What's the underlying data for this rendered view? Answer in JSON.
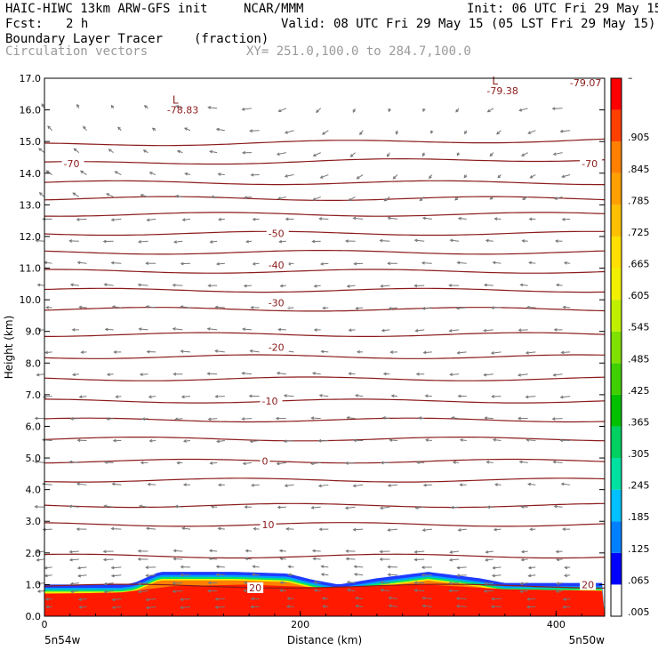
{
  "header": {
    "model": "HAIC-HIWC 13km ARW-GFS init",
    "org": "NCAR/MMM",
    "init": "Init: 06 UTC Fri 29 May 15",
    "fcst_label": "Fcst:",
    "fcst_value": "2 h",
    "valid": "Valid: 08 UTC Fri 29 May 15 (05 LST Fri 29 May 15)",
    "field": "Boundary Layer Tracer",
    "field_units": "(fraction)",
    "overlay": "Circulation vectors",
    "xy": "XY= 251.0,100.0 to 284.7,100.0"
  },
  "chart_data": {
    "type": "heatmap",
    "xlabel": "Distance (km)",
    "ylabel": "Height (km)",
    "xlim": [
      0,
      438
    ],
    "ylim": [
      0,
      17
    ],
    "x_ticks": [
      "0",
      "200",
      "400"
    ],
    "y_ticks": [
      "0.0",
      "1.0",
      "2.0",
      "3.0",
      "4.0",
      "5.0",
      "6.0",
      "7.0",
      "8.0",
      "9.0",
      "10.0",
      "11.0",
      "12.0",
      "13.0",
      "14.0",
      "15.0",
      "16.0",
      "17.0"
    ],
    "x_end_labels": [
      "5n54w",
      "5n50w"
    ],
    "colorbar_labels": [
      ".005",
      ".065",
      ".125",
      ".185",
      ".245",
      ".305",
      ".365",
      ".425",
      ".485",
      ".545",
      ".605",
      ".665",
      ".725",
      ".785",
      ".845",
      ".905",
      "–"
    ],
    "colorbar_colors": [
      "#ffffff",
      "#0000ff",
      "#0080ff",
      "#00c0ff",
      "#00e0a0",
      "#00d060",
      "#00c000",
      "#40d000",
      "#80e000",
      "#c0f000",
      "#f0f000",
      "#ffe000",
      "#ffc000",
      "#ffa000",
      "#ff8000",
      "#ff4000",
      "#ff0000"
    ],
    "tracer": {
      "top_km": [
        [
          0,
          1.0
        ],
        [
          60,
          1.0
        ],
        [
          70,
          1.05
        ],
        [
          90,
          1.4
        ],
        [
          150,
          1.4
        ],
        [
          190,
          1.35
        ],
        [
          210,
          1.15
        ],
        [
          230,
          1.0
        ],
        [
          260,
          1.2
        ],
        [
          300,
          1.4
        ],
        [
          340,
          1.2
        ],
        [
          360,
          1.05
        ],
        [
          438,
          1.05
        ]
      ],
      "red_top_km": [
        [
          0,
          0.7
        ],
        [
          60,
          0.75
        ],
        [
          100,
          0.95
        ],
        [
          160,
          1.0
        ],
        [
          220,
          0.9
        ],
        [
          300,
          1.0
        ],
        [
          360,
          0.85
        ],
        [
          438,
          0.8
        ]
      ]
    },
    "isotherms_c": [
      {
        "label": "20",
        "x": 160,
        "y": 0.9
      },
      {
        "label": "10",
        "x": 170,
        "y": 2.9
      },
      {
        "label": "0",
        "x": 170,
        "y": 4.9
      },
      {
        "label": "-10",
        "x": 170,
        "y": 6.8
      },
      {
        "label": "-20",
        "x": 175,
        "y": 8.5
      },
      {
        "label": "-30",
        "x": 175,
        "y": 9.9
      },
      {
        "label": "-40",
        "x": 175,
        "y": 11.1
      },
      {
        "label": "-50",
        "x": 175,
        "y": 12.1
      },
      {
        "label": "-70",
        "x": 15,
        "y": 14.3
      },
      {
        "label": "-70",
        "x": 420,
        "y": 14.3
      },
      {
        "label": "20",
        "x": 420,
        "y": 1.0
      }
    ],
    "isotherm_levels_km": [
      0.95,
      1.9,
      2.9,
      3.5,
      4.3,
      4.9,
      5.6,
      6.2,
      6.8,
      7.5,
      8.2,
      8.9,
      9.7,
      10.3,
      10.9,
      11.5,
      12.1,
      12.7,
      13.2,
      13.7,
      14.3,
      14.9
    ],
    "lows": [
      {
        "symbol": "L",
        "value": "-78.83",
        "x": 100,
        "y": 16.2
      },
      {
        "symbol": "L",
        "value": "-79.38",
        "x": 350,
        "y": 16.8
      },
      {
        "symbol": "",
        "value": "-79.07",
        "x": 415,
        "y": 17.05
      }
    ],
    "line_color": "#8b1a1a",
    "vector_color": "#777777"
  }
}
